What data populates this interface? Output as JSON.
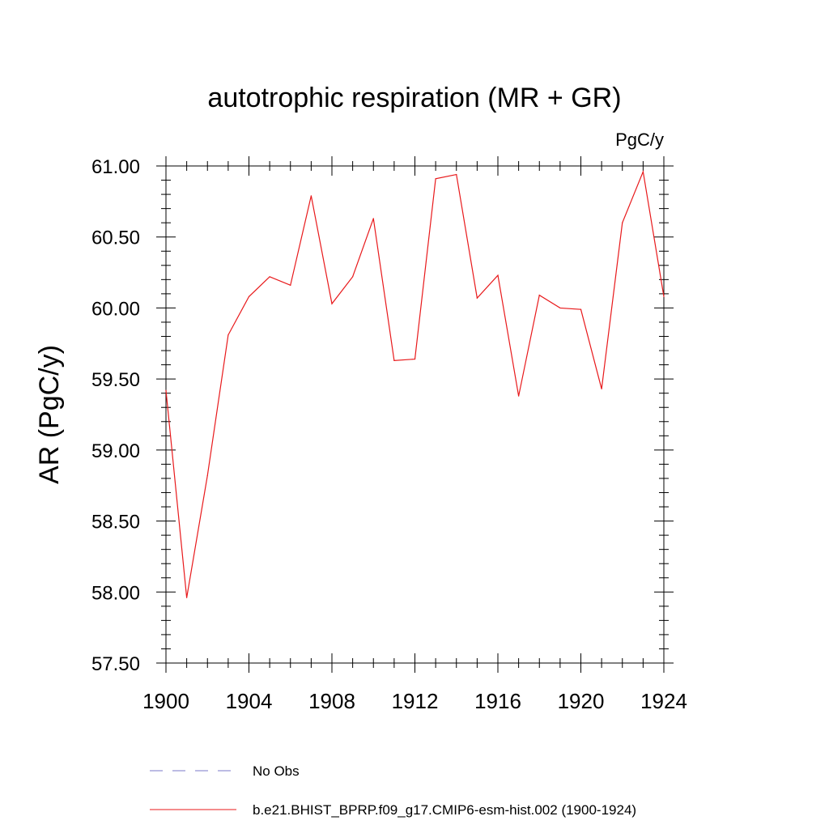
{
  "chart_data": {
    "type": "line",
    "title": "autotrophic respiration (MR + GR)",
    "units": "PgC/y",
    "ylabel": "AR  (PgC/y)",
    "xlabel": "",
    "xlim": [
      1900,
      1924
    ],
    "ylim": [
      57.5,
      61.0
    ],
    "xticks": [
      1900,
      1904,
      1908,
      1912,
      1916,
      1920,
      1924
    ],
    "xtick_labels": [
      "1900",
      "1904",
      "1908",
      "1912",
      "1916",
      "1920",
      "1924"
    ],
    "yticks": [
      57.5,
      58.0,
      58.5,
      59.0,
      59.5,
      60.0,
      60.5,
      61.0
    ],
    "ytick_labels": [
      "57.50",
      "58.00",
      "58.50",
      "59.00",
      "59.50",
      "60.00",
      "60.50",
      "61.00"
    ],
    "series": [
      {
        "name": "b.e21.BHIST_BPRP.f09_g17.CMIP6-esm-hist.002 (1900-1924)",
        "color": "#e8191b",
        "style": "solid",
        "x": [
          1900,
          1901,
          1902,
          1903,
          1904,
          1905,
          1906,
          1907,
          1908,
          1909,
          1910,
          1911,
          1912,
          1913,
          1914,
          1915,
          1916,
          1917,
          1918,
          1919,
          1920,
          1921,
          1922,
          1923,
          1924
        ],
        "values": [
          59.42,
          57.96,
          58.82,
          59.81,
          60.08,
          60.22,
          60.16,
          60.79,
          60.03,
          60.22,
          60.63,
          59.63,
          59.64,
          60.91,
          60.94,
          60.07,
          60.23,
          59.38,
          60.09,
          60.0,
          59.99,
          59.43,
          60.6,
          60.96,
          60.08
        ]
      },
      {
        "name": "No Obs",
        "color": "#7b78c8",
        "style": "dashed",
        "x": [],
        "values": []
      }
    ],
    "legend": {
      "position": "bottom-left",
      "entries": [
        "No Obs",
        "b.e21.BHIST_BPRP.f09_g17.CMIP6-esm-hist.002 (1900-1924)"
      ]
    }
  }
}
